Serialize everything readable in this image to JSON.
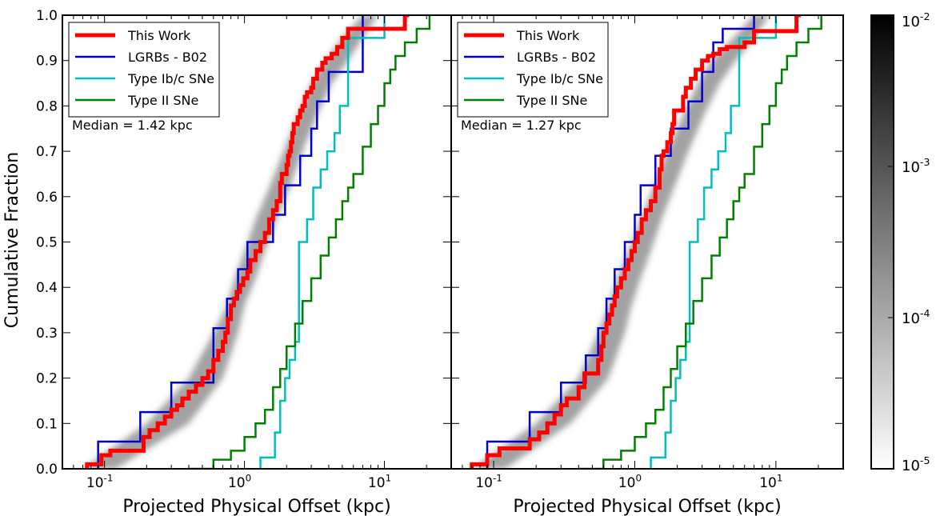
{
  "chart_data": [
    {
      "type": "line",
      "xscale": "log",
      "xlim": [
        0.05,
        30
      ],
      "ylim": [
        0.0,
        1.0
      ],
      "xlabel": "Projected Physical Offset (kpc)",
      "ylabel": "Cumulative Fraction",
      "x_ticks": [
        0.1,
        1,
        10
      ],
      "x_tick_labels": [
        {
          "base": "10",
          "exp": "-1"
        },
        {
          "base": "10",
          "exp": "0"
        },
        {
          "base": "10",
          "exp": "1"
        }
      ],
      "y_ticks": [
        0.0,
        0.1,
        0.2,
        0.3,
        0.4,
        0.5,
        0.6,
        0.7,
        0.8,
        0.9,
        1.0
      ],
      "y_tick_labels": [
        "0.0",
        "0.1",
        "0.2",
        "0.3",
        "0.4",
        "0.5",
        "0.6",
        "0.7",
        "0.8",
        "0.9",
        "1.0"
      ],
      "annotation": "Median = 1.42 kpc",
      "legend_position": "top-left",
      "series": [
        {
          "name": "This Work",
          "color": "#ff0000",
          "style": "step",
          "width": 5,
          "x": [
            0.075,
            0.095,
            0.11,
            0.19,
            0.21,
            0.24,
            0.27,
            0.3,
            0.33,
            0.36,
            0.4,
            0.45,
            0.5,
            0.55,
            0.6,
            0.65,
            0.7,
            0.73,
            0.76,
            0.8,
            0.84,
            0.88,
            0.93,
            0.98,
            1.05,
            1.1,
            1.2,
            1.3,
            1.4,
            1.5,
            1.6,
            1.7,
            1.8,
            1.85,
            2.0,
            2.05,
            2.1,
            2.15,
            2.2,
            2.25,
            2.3,
            2.4,
            2.5,
            2.6,
            2.7,
            2.8,
            3.0,
            3.1,
            3.3,
            3.6,
            3.8,
            4.2,
            4.6,
            5.0,
            5.5,
            7.0,
            14.0,
            15.0
          ],
          "y": [
            0.01,
            0.03,
            0.04,
            0.07,
            0.085,
            0.1,
            0.115,
            0.13,
            0.14,
            0.155,
            0.17,
            0.185,
            0.2,
            0.215,
            0.24,
            0.26,
            0.28,
            0.3,
            0.33,
            0.36,
            0.375,
            0.39,
            0.405,
            0.42,
            0.435,
            0.46,
            0.48,
            0.5,
            0.52,
            0.55,
            0.57,
            0.59,
            0.63,
            0.65,
            0.67,
            0.69,
            0.7,
            0.72,
            0.74,
            0.76,
            0.76,
            0.775,
            0.79,
            0.8,
            0.82,
            0.83,
            0.84,
            0.86,
            0.88,
            0.895,
            0.905,
            0.915,
            0.93,
            0.95,
            0.97,
            0.97,
            1.0,
            1.0
          ]
        },
        {
          "name": "LGRBs - B02",
          "color": "#0000cc",
          "style": "step",
          "width": 2.5,
          "x": [
            0.09,
            0.18,
            0.3,
            0.6,
            0.75,
            0.9,
            1.05,
            1.6,
            1.95,
            2.5,
            3.0,
            3.3,
            4.0,
            7.0
          ],
          "y": [
            0.06,
            0.125,
            0.19,
            0.31,
            0.375,
            0.44,
            0.5,
            0.56,
            0.625,
            0.69,
            0.75,
            0.81,
            0.875,
            1.0
          ]
        },
        {
          "name": "Type Ib/c SNe",
          "color": "#00bfbf",
          "style": "step",
          "width": 2.5,
          "x": [
            1.3,
            1.65,
            1.8,
            1.95,
            2.1,
            2.3,
            2.45,
            2.8,
            3.1,
            3.5,
            3.9,
            4.4,
            4.8,
            5.5,
            10.0
          ],
          "y": [
            0.025,
            0.08,
            0.15,
            0.2,
            0.24,
            0.28,
            0.5,
            0.55,
            0.62,
            0.66,
            0.7,
            0.74,
            0.8,
            0.95,
            1.0
          ]
        },
        {
          "name": "Type II SNe",
          "color": "#008000",
          "style": "step",
          "width": 2.5,
          "x": [
            0.4,
            0.6,
            0.8,
            1.0,
            1.2,
            1.4,
            1.6,
            1.8,
            2.0,
            2.3,
            2.6,
            3.0,
            3.5,
            4.0,
            4.5,
            5.0,
            5.5,
            6.0,
            7.0,
            8.0,
            9.0,
            10.0,
            11.0,
            12.0,
            14.0,
            17.0,
            21.0
          ],
          "y": [
            0.0,
            0.02,
            0.04,
            0.07,
            0.1,
            0.13,
            0.18,
            0.22,
            0.27,
            0.32,
            0.37,
            0.42,
            0.47,
            0.51,
            0.55,
            0.59,
            0.62,
            0.65,
            0.71,
            0.76,
            0.8,
            0.85,
            0.88,
            0.91,
            0.94,
            0.97,
            1.0
          ]
        },
        {
          "name": "",
          "style": "density-band",
          "color": "#555555",
          "x_lo": [
            0.07,
            0.2,
            0.4,
            0.6,
            0.75,
            0.85,
            1.0,
            1.2,
            1.5,
            1.9,
            2.4,
            3.0,
            3.8,
            5.0,
            7.0
          ],
          "x_hi": [
            0.12,
            0.4,
            0.7,
            0.9,
            1.0,
            1.2,
            1.4,
            1.7,
            2.1,
            2.6,
            3.3,
            4.2,
            5.5,
            7.0,
            9.0
          ],
          "y": [
            0.0,
            0.1,
            0.2,
            0.3,
            0.36,
            0.42,
            0.48,
            0.55,
            0.62,
            0.7,
            0.78,
            0.85,
            0.9,
            0.95,
            1.0
          ]
        }
      ]
    },
    {
      "type": "line",
      "xscale": "log",
      "xlim": [
        0.05,
        30
      ],
      "ylim": [
        0.0,
        1.0
      ],
      "xlabel": "Projected Physical Offset (kpc)",
      "x_ticks": [
        0.1,
        1,
        10
      ],
      "x_tick_labels": [
        {
          "base": "10",
          "exp": "-1"
        },
        {
          "base": "10",
          "exp": "0"
        },
        {
          "base": "10",
          "exp": "1"
        }
      ],
      "annotation": "Median = 1.27 kpc",
      "legend_position": "top-left",
      "series": [
        {
          "name": "This Work",
          "color": "#ff0000",
          "style": "step",
          "width": 5,
          "x": [
            0.07,
            0.09,
            0.11,
            0.18,
            0.21,
            0.24,
            0.27,
            0.3,
            0.33,
            0.4,
            0.44,
            0.52,
            0.55,
            0.58,
            0.6,
            0.63,
            0.66,
            0.69,
            0.72,
            0.75,
            0.8,
            0.85,
            0.9,
            0.95,
            1.0,
            1.05,
            1.12,
            1.2,
            1.3,
            1.4,
            1.5,
            1.55,
            1.6,
            1.7,
            1.8,
            1.85,
            1.9,
            2.0,
            2.2,
            2.3,
            2.5,
            2.7,
            3.0,
            3.3,
            3.6,
            3.8,
            4.0,
            4.5,
            6.0,
            7.0,
            14.0,
            15.0
          ],
          "y": [
            0.01,
            0.03,
            0.045,
            0.065,
            0.08,
            0.1,
            0.12,
            0.14,
            0.155,
            0.18,
            0.21,
            0.21,
            0.24,
            0.27,
            0.3,
            0.32,
            0.34,
            0.36,
            0.38,
            0.4,
            0.42,
            0.44,
            0.46,
            0.48,
            0.5,
            0.52,
            0.55,
            0.57,
            0.59,
            0.62,
            0.66,
            0.69,
            0.7,
            0.72,
            0.74,
            0.76,
            0.79,
            0.79,
            0.82,
            0.84,
            0.86,
            0.88,
            0.9,
            0.91,
            0.915,
            0.915,
            0.925,
            0.93,
            0.94,
            0.965,
            1.0,
            1.0
          ]
        },
        {
          "name": "LGRBs - B02",
          "color": "#0000cc",
          "style": "step",
          "width": 2.5,
          "x": [
            0.09,
            0.18,
            0.3,
            0.45,
            0.55,
            0.63,
            0.72,
            0.85,
            1.0,
            1.1,
            1.4,
            1.8,
            2.4,
            3.0,
            3.6,
            4.2,
            7.0
          ],
          "y": [
            0.06,
            0.125,
            0.19,
            0.25,
            0.31,
            0.375,
            0.44,
            0.5,
            0.56,
            0.625,
            0.69,
            0.75,
            0.81,
            0.875,
            0.94,
            0.97,
            1.0
          ]
        },
        {
          "name": "Type Ib/c SNe",
          "color": "#00bfbf",
          "style": "step",
          "width": 2.5,
          "x": [
            1.3,
            1.65,
            1.8,
            1.95,
            2.1,
            2.3,
            2.45,
            2.8,
            3.1,
            3.5,
            3.9,
            4.4,
            4.8,
            5.5,
            10.0
          ],
          "y": [
            0.025,
            0.08,
            0.15,
            0.2,
            0.24,
            0.28,
            0.5,
            0.55,
            0.62,
            0.66,
            0.7,
            0.74,
            0.8,
            0.95,
            1.0
          ]
        },
        {
          "name": "Type II SNe",
          "color": "#008000",
          "style": "step",
          "width": 2.5,
          "x": [
            0.4,
            0.6,
            0.8,
            1.0,
            1.2,
            1.4,
            1.6,
            1.8,
            2.0,
            2.3,
            2.6,
            3.0,
            3.5,
            4.0,
            4.5,
            5.0,
            5.5,
            6.0,
            7.0,
            8.0,
            9.0,
            10.0,
            11.0,
            12.0,
            14.0,
            17.0,
            21.0
          ],
          "y": [
            0.0,
            0.02,
            0.04,
            0.07,
            0.1,
            0.13,
            0.18,
            0.22,
            0.27,
            0.32,
            0.37,
            0.42,
            0.47,
            0.51,
            0.55,
            0.59,
            0.62,
            0.65,
            0.71,
            0.76,
            0.8,
            0.85,
            0.88,
            0.91,
            0.94,
            0.97,
            1.0
          ]
        },
        {
          "name": "",
          "style": "density-band",
          "color": "#555555",
          "x_lo": [
            0.07,
            0.2,
            0.4,
            0.55,
            0.65,
            0.75,
            0.9,
            1.1,
            1.35,
            1.7,
            2.2,
            2.8,
            3.5,
            5.0,
            7.0
          ],
          "x_hi": [
            0.12,
            0.35,
            0.65,
            0.85,
            0.95,
            1.1,
            1.3,
            1.55,
            1.9,
            2.4,
            3.1,
            4.0,
            5.2,
            7.0,
            9.0
          ],
          "y": [
            0.0,
            0.1,
            0.2,
            0.3,
            0.36,
            0.42,
            0.48,
            0.55,
            0.62,
            0.7,
            0.78,
            0.85,
            0.9,
            0.95,
            1.0
          ]
        }
      ]
    }
  ],
  "colorbar": {
    "scale": "log",
    "range": [
      1e-05,
      0.01
    ],
    "colormap": "gray_r",
    "ticks": [
      {
        "value": 0.01,
        "base": "10",
        "exp": "-2"
      },
      {
        "value": 0.001,
        "base": "10",
        "exp": "-3"
      },
      {
        "value": 0.0001,
        "base": "10",
        "exp": "-4"
      },
      {
        "value": 1e-05,
        "base": "10",
        "exp": "-5"
      }
    ]
  }
}
